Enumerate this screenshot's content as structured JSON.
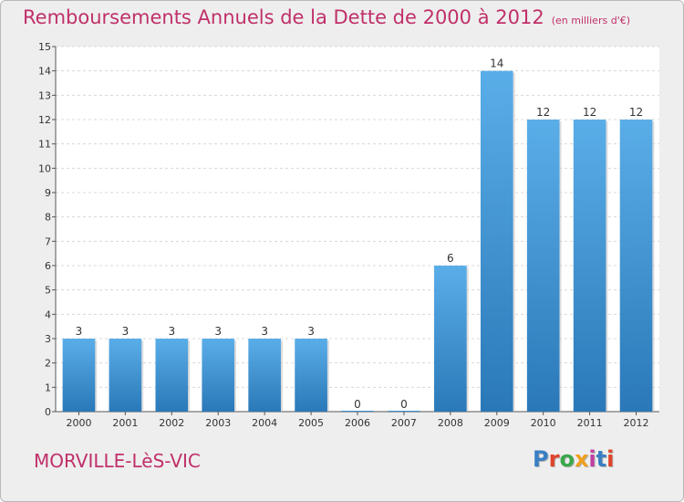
{
  "header": {
    "title": "Remboursements Annuels de la Dette de 2000 à 2012",
    "subtitle": "(en milliers d'€)"
  },
  "footer": {
    "place": "MORVILLE-LèS-VIC",
    "logo": "Proxiti"
  },
  "colors": {
    "title": "#c0306a",
    "bar_top": "#5aaee8",
    "bar_bottom": "#2a78b8",
    "logo_letters": [
      "#3a7fc4",
      "#e0442a",
      "#3aa84a",
      "#f0a020",
      "#c040a0",
      "#3a7fc4",
      "#e0442a"
    ]
  },
  "chart_data": {
    "type": "bar",
    "categories": [
      "2000",
      "2001",
      "2002",
      "2003",
      "2004",
      "2005",
      "2006",
      "2007",
      "2008",
      "2009",
      "2010",
      "2011",
      "2012"
    ],
    "values": [
      3,
      3,
      3,
      3,
      3,
      3,
      0,
      0,
      6,
      14,
      12,
      12,
      12
    ],
    "ylim": [
      0,
      15
    ],
    "yticks": [
      0,
      1,
      2,
      3,
      4,
      5,
      6,
      7,
      8,
      9,
      10,
      11,
      12,
      13,
      14,
      15
    ],
    "grid": true,
    "data_labels": true
  }
}
